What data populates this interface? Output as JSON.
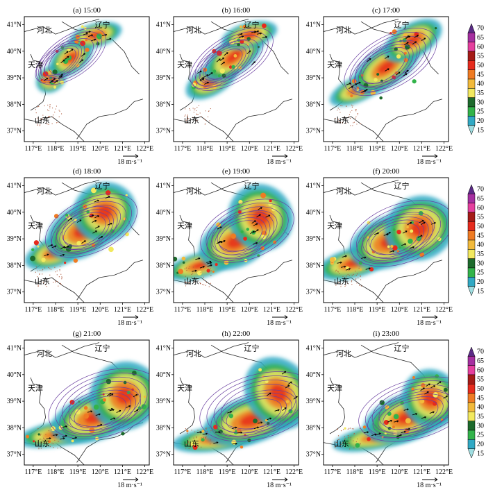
{
  "chart_data": {
    "type": "heatmap",
    "x_ticks": [
      "117°E",
      "118°E",
      "119°E",
      "120°E",
      "121°E",
      "122°E"
    ],
    "y_ticks": [
      "41°N",
      "40°N",
      "39°N",
      "38°N",
      "37°N"
    ],
    "xlim": [
      116.6,
      122.2
    ],
    "ylim": [
      36.6,
      41.3
    ],
    "provinces": [
      "河北",
      "辽宁",
      "天津",
      "山东"
    ],
    "reference_vector": "18 m·s⁻¹",
    "colorbar": {
      "ticks": [
        15,
        20,
        25,
        30,
        35,
        40,
        45,
        50,
        55,
        60,
        65,
        70
      ],
      "colors": [
        "#9fdde0",
        "#30a9c4",
        "#32b34a",
        "#1d6a2c",
        "#f2e95f",
        "#f2ba3b",
        "#ef7b23",
        "#e62b1d",
        "#a51b17",
        "#e53f9e",
        "#a52fa0",
        "#5a2a86"
      ]
    },
    "panels": [
      {
        "title": "(a) 15:00",
        "echo": [
          [
            117.8,
            38.95,
            0.45,
            0.3,
            -35
          ],
          [
            118.7,
            39.75,
            0.7,
            0.35,
            -38
          ],
          [
            119.8,
            40.6,
            0.75,
            0.28,
            -15
          ]
        ],
        "contours": [
          [
            118.2,
            39.6,
            1.3,
            0.55,
            -38
          ],
          [
            118.7,
            39.8,
            1.8,
            0.75,
            -35
          ]
        ]
      },
      {
        "title": "(b) 16:00",
        "echo": [
          [
            118.3,
            38.9,
            0.8,
            0.35,
            -30
          ],
          [
            119.3,
            39.8,
            1.0,
            0.4,
            -38
          ],
          [
            120.0,
            40.6,
            0.8,
            0.3,
            -15
          ]
        ],
        "contours": [
          [
            118.8,
            39.5,
            1.6,
            0.6,
            -35
          ],
          [
            119.2,
            39.7,
            2.1,
            0.85,
            -32
          ]
        ]
      },
      {
        "title": "(c) 17:00",
        "echo": [
          [
            118.2,
            38.6,
            0.9,
            0.3,
            -25
          ],
          [
            119.4,
            39.4,
            1.1,
            0.45,
            -35
          ],
          [
            120.6,
            40.4,
            0.9,
            0.4,
            -30
          ]
        ],
        "contours": [
          [
            119.3,
            39.4,
            1.7,
            0.7,
            -33
          ],
          [
            119.6,
            39.6,
            2.3,
            0.95,
            -30
          ]
        ]
      },
      {
        "title": "(d) 18:00",
        "echo": [
          [
            118.0,
            38.5,
            0.9,
            0.35,
            -20
          ],
          [
            119.2,
            39.3,
            1.1,
            0.6,
            -30
          ],
          [
            120.2,
            40.0,
            0.9,
            0.7,
            -20
          ]
        ],
        "contours": [
          [
            119.3,
            39.3,
            1.6,
            0.75,
            -28
          ],
          [
            119.6,
            39.5,
            2.2,
            1.0,
            -25
          ]
        ]
      },
      {
        "title": "(e) 19:00",
        "echo": [
          [
            117.8,
            38.0,
            1.0,
            0.3,
            -15
          ],
          [
            119.4,
            38.9,
            1.1,
            0.6,
            -25
          ],
          [
            120.5,
            39.8,
            0.9,
            0.8,
            -30
          ]
        ],
        "contours": [
          [
            119.6,
            39.1,
            1.6,
            0.8,
            -25
          ],
          [
            119.9,
            39.3,
            2.2,
            1.05,
            -22
          ]
        ]
      },
      {
        "title": "(f) 20:00",
        "echo": [
          [
            118.0,
            38.1,
            1.1,
            0.35,
            -15
          ],
          [
            119.6,
            38.9,
            1.2,
            0.6,
            -20
          ],
          [
            120.9,
            39.4,
            1.0,
            0.75,
            -25
          ]
        ],
        "contours": [
          [
            119.8,
            39.0,
            1.8,
            0.8,
            -22
          ],
          [
            120.1,
            39.2,
            2.4,
            1.1,
            -20
          ]
        ]
      },
      {
        "title": "(g) 21:00",
        "echo": [
          [
            118.3,
            37.8,
            1.3,
            0.3,
            -10
          ],
          [
            119.8,
            38.4,
            1.3,
            0.55,
            -18
          ],
          [
            121.1,
            39.2,
            1.0,
            0.8,
            -30
          ]
        ],
        "contours": [
          [
            120.0,
            38.6,
            1.9,
            0.8,
            -20
          ],
          [
            120.2,
            38.9,
            2.6,
            1.2,
            -18
          ]
        ]
      },
      {
        "title": "(h) 22:00",
        "echo": [
          [
            118.6,
            37.6,
            1.3,
            0.3,
            -8
          ],
          [
            120.1,
            38.3,
            1.4,
            0.55,
            -16
          ],
          [
            121.3,
            39.3,
            0.9,
            0.9,
            -35
          ]
        ],
        "contours": [
          [
            120.2,
            38.5,
            2.0,
            0.8,
            -18
          ],
          [
            120.4,
            38.8,
            2.7,
            1.2,
            -16
          ]
        ]
      },
      {
        "title": "(i) 23:00",
        "echo": [
          [
            119.2,
            37.7,
            1.4,
            0.3,
            -12
          ],
          [
            120.4,
            38.4,
            1.3,
            0.55,
            -18
          ],
          [
            121.4,
            39.1,
            0.8,
            0.7,
            -30
          ]
        ],
        "contours": [
          [
            120.5,
            38.5,
            2.0,
            0.75,
            -18
          ],
          [
            120.7,
            38.7,
            2.6,
            1.1,
            -16
          ]
        ]
      }
    ]
  }
}
